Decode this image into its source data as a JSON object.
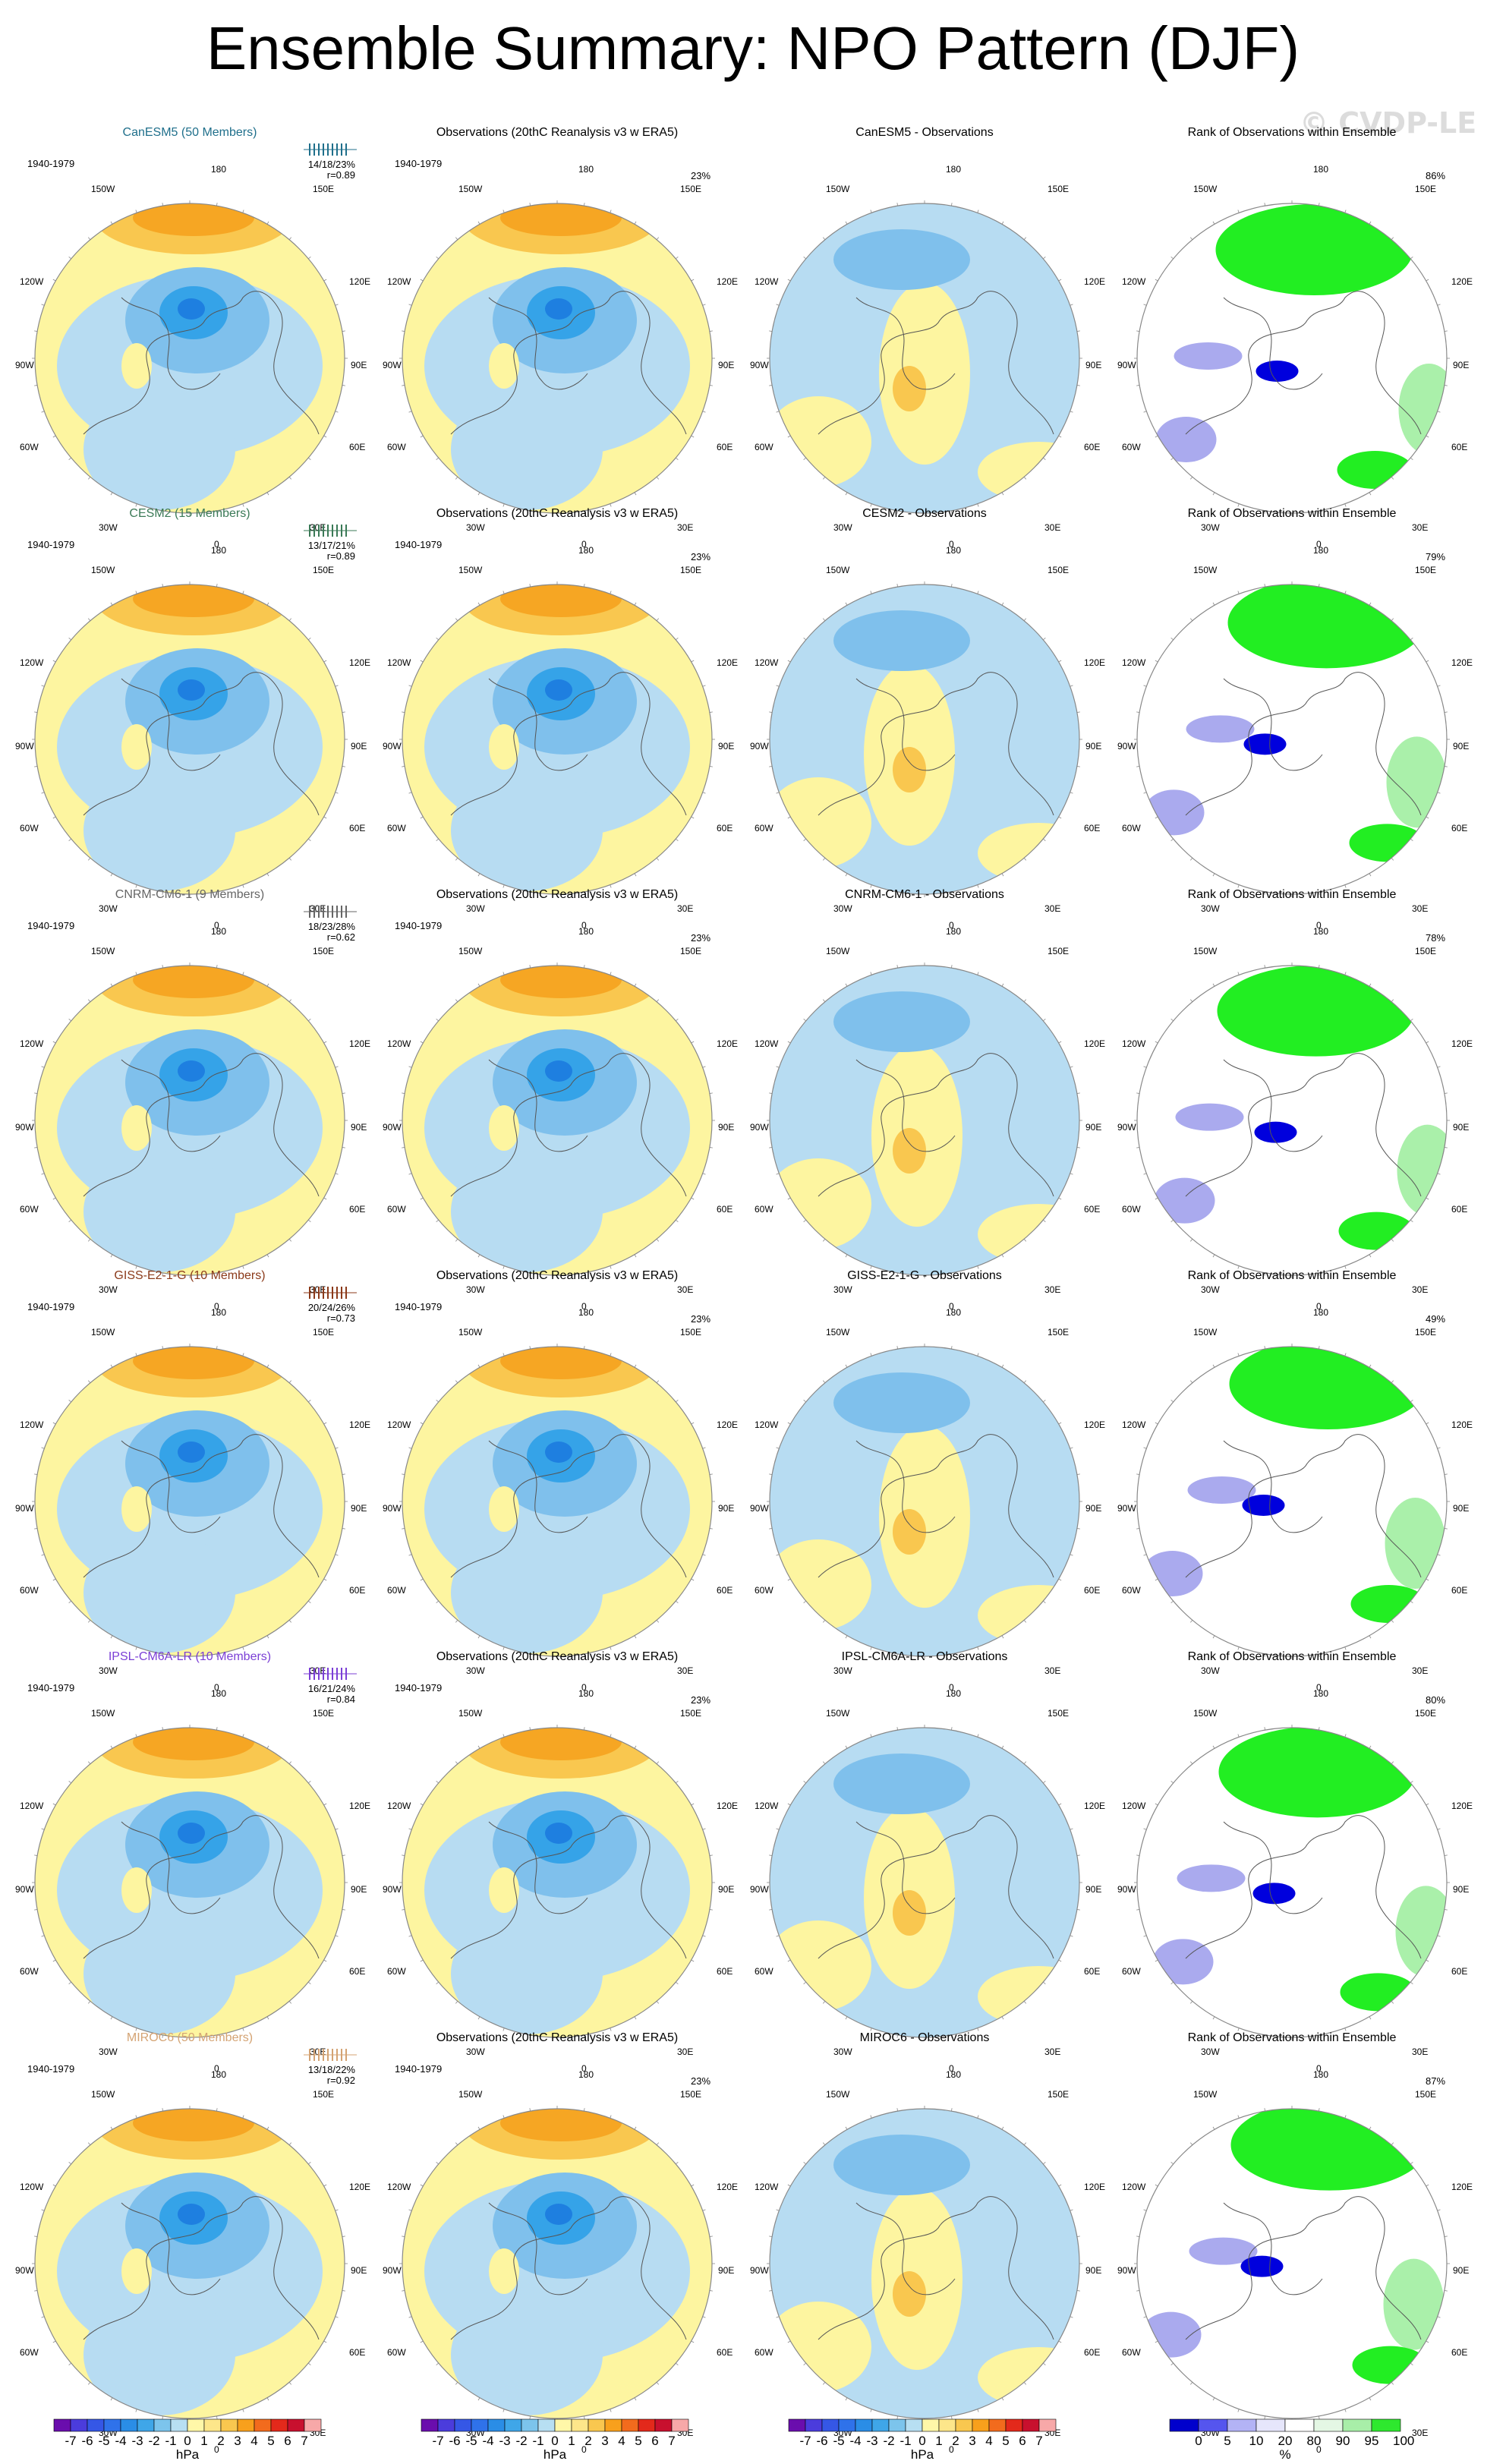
{
  "title": "Ensemble Summary: NPO Pattern (DJF)",
  "watermark": "© CVDP-LE",
  "period": "1940-1979",
  "obs_title": "Observations (20thC Reanalysis v3 w ERA5)",
  "obs_pct": "23%",
  "rank_title": "Rank of Observations within Ensemble",
  "lon_labels": {
    "top": "180",
    "tl": "150W",
    "tr": "150E",
    "ul": "120W",
    "ur": "120E",
    "ml": "90W",
    "mr": "90E",
    "ll": "60W",
    "lr": "60E",
    "bl": "30W",
    "br": "30E",
    "bottom": "0"
  },
  "models": [
    {
      "name": "CanESM5 (50 Members)",
      "color": "#1f6f8b",
      "stats": "14/18/23%",
      "r": "r=0.89",
      "diff_title": "CanESM5 - Observations",
      "rank_pct": "86%"
    },
    {
      "name": "CESM2 (15 Members)",
      "color": "#3b7a57",
      "stats": "13/17/21%",
      "r": "r=0.89",
      "diff_title": "CESM2 - Observations",
      "rank_pct": "79%"
    },
    {
      "name": "CNRM-CM6-1 (9 Members)",
      "color": "#666666",
      "stats": "18/23/28%",
      "r": "r=0.62",
      "diff_title": "CNRM-CM6-1 - Observations",
      "rank_pct": "78%"
    },
    {
      "name": "GISS-E2-1-G (10 Members)",
      "color": "#8b3a1a",
      "stats": "20/24/26%",
      "r": "r=0.73",
      "diff_title": "GISS-E2-1-G - Observations",
      "rank_pct": "49%"
    },
    {
      "name": "IPSL-CM6A-LR (10 Members)",
      "color": "#7b3fd6",
      "stats": "16/21/24%",
      "r": "r=0.84",
      "diff_title": "IPSL-CM6A-LR - Observations",
      "rank_pct": "80%"
    },
    {
      "name": "MIROC6 (50 Members)",
      "color": "#d4a373",
      "stats": "13/18/22%",
      "r": "r=0.92",
      "diff_title": "MIROC6 - Observations",
      "rank_pct": "87%"
    }
  ],
  "colorbar_hpa": {
    "labels": [
      "-7",
      "-6",
      "-5",
      "-4",
      "-3",
      "-2",
      "-1",
      "0",
      "1",
      "2",
      "3",
      "4",
      "5",
      "6",
      "7"
    ],
    "unit": "hPa",
    "colors": [
      "#6a0dad",
      "#4b3cdc",
      "#3557e6",
      "#2f72ea",
      "#2a8de6",
      "#3fa6e8",
      "#7cc4ec",
      "#b7dff2",
      "#fff7a8",
      "#fde68a",
      "#f9c74f",
      "#f8a01c",
      "#f26b1d",
      "#e3291b",
      "#c8102e",
      "#f7a8a8"
    ]
  },
  "colorbar_rank": {
    "labels": [
      "0",
      "5",
      "10",
      "20",
      "80",
      "90",
      "95",
      "100"
    ],
    "unit": "%",
    "colors": [
      "#0000cc",
      "#5555ee",
      "#b3b3f5",
      "#e6e6fb",
      "#ffffff",
      "#e4f7e4",
      "#a8eea8",
      "#2ee82e"
    ]
  },
  "palette": {
    "ocean_pos": "#fdf5a0",
    "pos2": "#f9c74f",
    "pos3": "#f6a623",
    "neg1": "#b7dcf2",
    "neg2": "#7fc0ec",
    "neg3": "#35a3e8",
    "neg4": "#1e7fe0",
    "neg5": "#2f58c8",
    "rank_hi": "#22ee22",
    "rank_mid": "#aaf0aa",
    "rank_lo": "#0000dd",
    "rank_lo2": "#aaaaee"
  }
}
